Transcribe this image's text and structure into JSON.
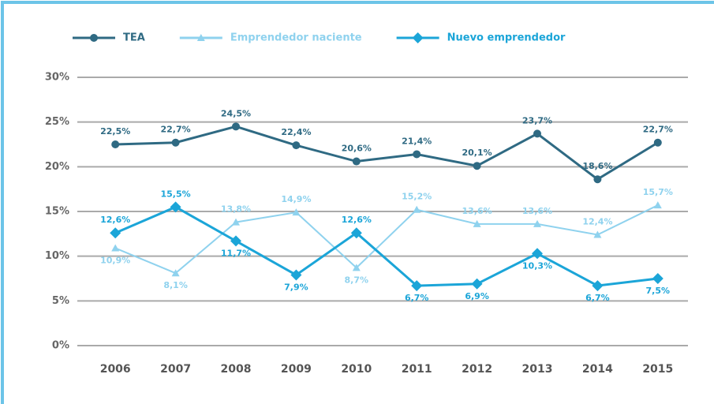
{
  "chart_data": {
    "type": "line",
    "categories": [
      "2006",
      "2007",
      "2008",
      "2009",
      "2010",
      "2011",
      "2012",
      "2013",
      "2014",
      "2015"
    ],
    "series": [
      {
        "name": "TEA",
        "color": "#2f6a83",
        "marker": "circle",
        "values": [
          22.5,
          22.7,
          24.5,
          22.4,
          20.6,
          21.4,
          20.1,
          23.7,
          18.6,
          22.7
        ],
        "value_labels": [
          "22,5%",
          "22,7%",
          "24,5%",
          "22,4%",
          "20,6%",
          "21,4%",
          "20,1%",
          "23,7%",
          "18,6%",
          "22,7%"
        ]
      },
      {
        "name": "Emprendedor naciente",
        "color": "#8fd2ee",
        "marker": "triangle",
        "values": [
          10.9,
          8.1,
          13.8,
          14.9,
          8.7,
          15.2,
          13.6,
          13.6,
          12.4,
          15.7
        ],
        "value_labels": [
          "10,9%",
          "8,1%",
          "13,8%",
          "14,9%",
          "8,7%",
          "15,2%",
          "13,6%",
          "13,6%",
          "12,4%",
          "15,7%"
        ]
      },
      {
        "name": "Nuevo emprendedor",
        "color": "#1ba5d8",
        "marker": "diamond",
        "values": [
          12.6,
          15.5,
          11.7,
          7.9,
          12.6,
          6.7,
          6.9,
          10.3,
          6.7,
          7.5
        ],
        "value_labels": [
          "12,6%",
          "15,5%",
          "11,7%",
          "7,9%",
          "12,6%",
          "6,7%",
          "6,9%",
          "10,3%",
          "6,7%",
          "7,5%"
        ]
      }
    ],
    "ylim": [
      0,
      30
    ],
    "yticks": [
      {
        "value": 0,
        "label": "0%"
      },
      {
        "value": 5,
        "label": "5%"
      },
      {
        "value": 10,
        "label": "10%"
      },
      {
        "value": 15,
        "label": "15%"
      },
      {
        "value": 20,
        "label": "20%"
      },
      {
        "value": 25,
        "label": "25%"
      },
      {
        "value": 30,
        "label": "30%"
      }
    ],
    "grid": true,
    "legend": "top"
  }
}
